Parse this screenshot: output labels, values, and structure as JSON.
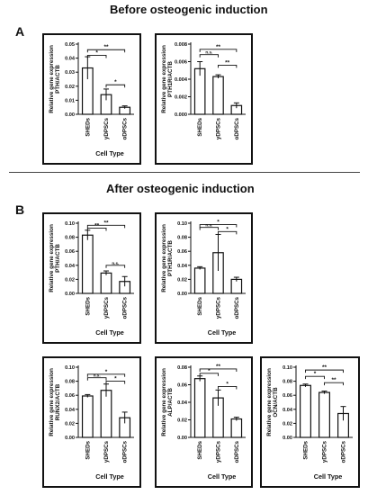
{
  "headings": {
    "before": "Before osteogenic induction",
    "after": "After osteogenic induction"
  },
  "panel_letters": {
    "a": "A",
    "b": "B"
  },
  "chart_data": [
    {
      "type": "bar",
      "ylabel": "Relative gene expression",
      "ylabel2": "PTH/ACTB",
      "xlabel": "Cell Type",
      "categories": [
        "SHEDs",
        "yDPSCs",
        "oDPSCs"
      ],
      "values": [
        0.033,
        0.014,
        0.005
      ],
      "errors": [
        0.008,
        0.004,
        0.001
      ],
      "ylim": [
        0,
        0.05
      ],
      "ticks": [
        "0.00",
        "0.01",
        "0.02",
        "0.03",
        "0.04",
        "0.05"
      ],
      "tick_values": [
        0,
        0.01,
        0.02,
        0.03,
        0.04,
        0.05
      ],
      "brackets": [
        {
          "from": 0,
          "to": 2,
          "y": 0.046,
          "label": "**"
        },
        {
          "from": 0,
          "to": 1,
          "y": 0.042,
          "label": "*"
        },
        {
          "from": 1,
          "to": 2,
          "y": 0.021,
          "label": "*"
        }
      ]
    },
    {
      "type": "bar",
      "ylabel": "Relative gene expression",
      "ylabel2": "PTH1R/ACTB",
      "xlabel": "",
      "categories": [
        "SHEDs",
        "yDPSCs",
        "oDPSCs"
      ],
      "values": [
        0.0052,
        0.0043,
        0.001
      ],
      "errors": [
        0.0008,
        0.0002,
        0.0003
      ],
      "ylim": [
        0,
        0.008
      ],
      "ticks": [
        "0.000",
        "0.002",
        "0.004",
        "0.006",
        "0.008"
      ],
      "tick_values": [
        0,
        0.002,
        0.004,
        0.006,
        0.008
      ],
      "brackets": [
        {
          "from": 0,
          "to": 2,
          "y": 0.0074,
          "label": "**"
        },
        {
          "from": 0,
          "to": 1,
          "y": 0.0068,
          "label": "n.s."
        },
        {
          "from": 1,
          "to": 2,
          "y": 0.0056,
          "label": "**"
        }
      ]
    },
    {
      "type": "bar",
      "ylabel": "Relative gene expression",
      "ylabel2": "PTH/ACTB",
      "xlabel": "Cell Type",
      "categories": [
        "SHEDs",
        "yDPSCs",
        "oDPSCs"
      ],
      "values": [
        0.083,
        0.029,
        0.017
      ],
      "errors": [
        0.007,
        0.003,
        0.007
      ],
      "ylim": [
        0,
        0.1
      ],
      "ticks": [
        "0.00",
        "0.02",
        "0.04",
        "0.06",
        "0.08",
        "0.10"
      ],
      "tick_values": [
        0,
        0.02,
        0.04,
        0.06,
        0.08,
        0.1
      ],
      "brackets": [
        {
          "from": 0,
          "to": 2,
          "y": 0.097,
          "label": "**"
        },
        {
          "from": 0,
          "to": 1,
          "y": 0.093,
          "label": "**"
        },
        {
          "from": 1,
          "to": 2,
          "y": 0.04,
          "label": "n.s."
        }
      ]
    },
    {
      "type": "bar",
      "ylabel": "Relative gene expression",
      "ylabel2": "PTH1R/ACTB",
      "xlabel": "Cell Type",
      "categories": [
        "SHEDs",
        "yDPSCs",
        "oDPSCs"
      ],
      "values": [
        0.036,
        0.058,
        0.02
      ],
      "errors": [
        0.002,
        0.026,
        0.003
      ],
      "ylim": [
        0,
        0.1
      ],
      "ticks": [
        "0.00",
        "0.02",
        "0.04",
        "0.06",
        "0.08",
        "0.10"
      ],
      "tick_values": [
        0,
        0.02,
        0.04,
        0.06,
        0.08,
        0.1
      ],
      "brackets": [
        {
          "from": 0,
          "to": 2,
          "y": 0.098,
          "label": "*"
        },
        {
          "from": 0,
          "to": 1,
          "y": 0.094,
          "label": "n.s."
        },
        {
          "from": 1,
          "to": 2,
          "y": 0.088,
          "label": "*"
        }
      ]
    },
    {
      "type": "bar",
      "ylabel": "Relative gene expression",
      "ylabel2": "RUNX2/ACTB",
      "xlabel": "Cell Type",
      "categories": [
        "SHEDs",
        "yDPSCs",
        "oDPSCs"
      ],
      "values": [
        0.059,
        0.067,
        0.028
      ],
      "errors": [
        0.002,
        0.009,
        0.008
      ],
      "ylim": [
        0,
        0.1
      ],
      "ticks": [
        "0.00",
        "0.02",
        "0.04",
        "0.06",
        "0.08",
        "0.10"
      ],
      "tick_values": [
        0,
        0.02,
        0.04,
        0.06,
        0.08,
        0.1
      ],
      "brackets": [
        {
          "from": 0,
          "to": 2,
          "y": 0.09,
          "label": "*"
        },
        {
          "from": 0,
          "to": 1,
          "y": 0.085,
          "label": "n.s."
        },
        {
          "from": 1,
          "to": 2,
          "y": 0.08,
          "label": "*"
        }
      ]
    },
    {
      "type": "bar",
      "ylabel": "Relative gene expression",
      "ylabel2": "ALP/ACTB",
      "xlabel": "Cell Type",
      "categories": [
        "SHEDs",
        "yDPSCs",
        "oDPSCs"
      ],
      "values": [
        0.067,
        0.045,
        0.021
      ],
      "errors": [
        0.003,
        0.009,
        0.002
      ],
      "ylim": [
        0,
        0.08
      ],
      "ticks": [
        "0.00",
        "0.02",
        "0.04",
        "0.06",
        "0.08"
      ],
      "tick_values": [
        0,
        0.02,
        0.04,
        0.06,
        0.08
      ],
      "brackets": [
        {
          "from": 0,
          "to": 2,
          "y": 0.078,
          "label": "**"
        },
        {
          "from": 0,
          "to": 1,
          "y": 0.073,
          "label": "*"
        },
        {
          "from": 1,
          "to": 2,
          "y": 0.058,
          "label": "*"
        }
      ]
    },
    {
      "type": "bar",
      "ylabel": "Relative gene expression",
      "ylabel2": "OCN/ACTB",
      "xlabel": "Cell Type",
      "categories": [
        "SHEDs",
        "yDPSCs",
        "oDPSCs"
      ],
      "values": [
        0.074,
        0.064,
        0.034
      ],
      "errors": [
        0.002,
        0.002,
        0.01
      ],
      "ylim": [
        0,
        0.1
      ],
      "ticks": [
        "0.00",
        "0.02",
        "0.04",
        "0.06",
        "0.08",
        "0.10"
      ],
      "tick_values": [
        0,
        0.02,
        0.04,
        0.06,
        0.08,
        0.1
      ],
      "brackets": [
        {
          "from": 0,
          "to": 2,
          "y": 0.096,
          "label": "**"
        },
        {
          "from": 0,
          "to": 1,
          "y": 0.087,
          "label": "*"
        },
        {
          "from": 1,
          "to": 2,
          "y": 0.078,
          "label": "**"
        }
      ]
    }
  ]
}
